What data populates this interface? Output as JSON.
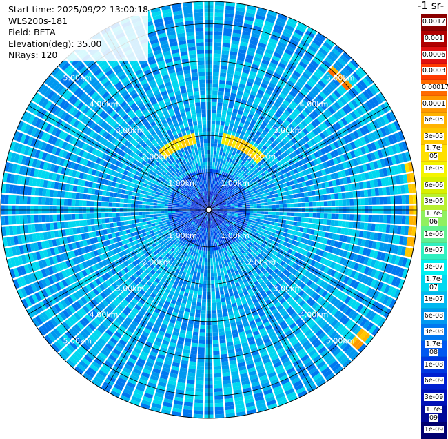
{
  "info": {
    "start_time": "Start time: 2025/09/22 13:00:18",
    "instrument": "WLS200s-181",
    "field": "Field: BETA",
    "elevation": "Elevation(deg): 35.00",
    "nrays": "NRays: 120"
  },
  "colorbar": {
    "title_fragment": "-1 sr-",
    "labels": [
      "0.0017",
      "0.001",
      "0.0006",
      "0.0003",
      "0.00017",
      "0.0001",
      "6e-05",
      "3e-05",
      "1.7e-05",
      "1e-05",
      "6e-06",
      "3e-06",
      "1.7e-06",
      "1e-06",
      "6e-07",
      "3e-07",
      "1.7e-07",
      "1e-07",
      "6e-08",
      "3e-08",
      "1.7e-08",
      "1e-08",
      "6e-09",
      "3e-09",
      "1.7e-09",
      "1e-09"
    ],
    "colors": [
      "#8b0000",
      "#b00000",
      "#e01010",
      "#ff3a00",
      "#ff6a00",
      "#ff9800",
      "#ffb300",
      "#ffc800",
      "#ffe000",
      "#f4f400",
      "#d8f000",
      "#b8f030",
      "#90f060",
      "#60f090",
      "#30f0c0",
      "#00f0f0",
      "#00d8f0",
      "#00b8f0",
      "#0098f0",
      "#0078f0",
      "#0058f0",
      "#0038e0",
      "#0020d0",
      "#0010b8",
      "#000898",
      "#000070"
    ]
  },
  "chart_data": {
    "type": "heatmap",
    "projection": "polar PPI scan",
    "field": "BETA",
    "elevation_deg": 35.0,
    "nrays": 120,
    "range_rings_km": [
      1.0,
      2.0,
      3.0,
      4.0,
      5.0
    ],
    "range_ring_labels": [
      "1.00km",
      "2.00km",
      "3.00km",
      "4.00km",
      "5.00km"
    ],
    "max_range_km": 5.6,
    "background_level": "1e-07",
    "features": [
      {
        "description_value": "1.7e-05",
        "azimuth_from_deg": -40,
        "azimuth_to_deg": -10,
        "range_km": 1.95
      },
      {
        "description_value": "1.7e-05",
        "azimuth_from_deg": 10,
        "azimuth_to_deg": 45,
        "range_km": 1.95
      },
      {
        "description_value": "0.0001",
        "azimuth_from_deg": 40,
        "azimuth_to_deg": 48,
        "range_km": 5.0
      },
      {
        "description_value": "3e-05",
        "azimuth_from_deg": 78,
        "azimuth_to_deg": 104,
        "range_km": 5.55
      },
      {
        "description_value": "6e-05",
        "azimuth_from_deg": 128,
        "azimuth_to_deg": 133,
        "range_km": 5.35
      }
    ]
  }
}
